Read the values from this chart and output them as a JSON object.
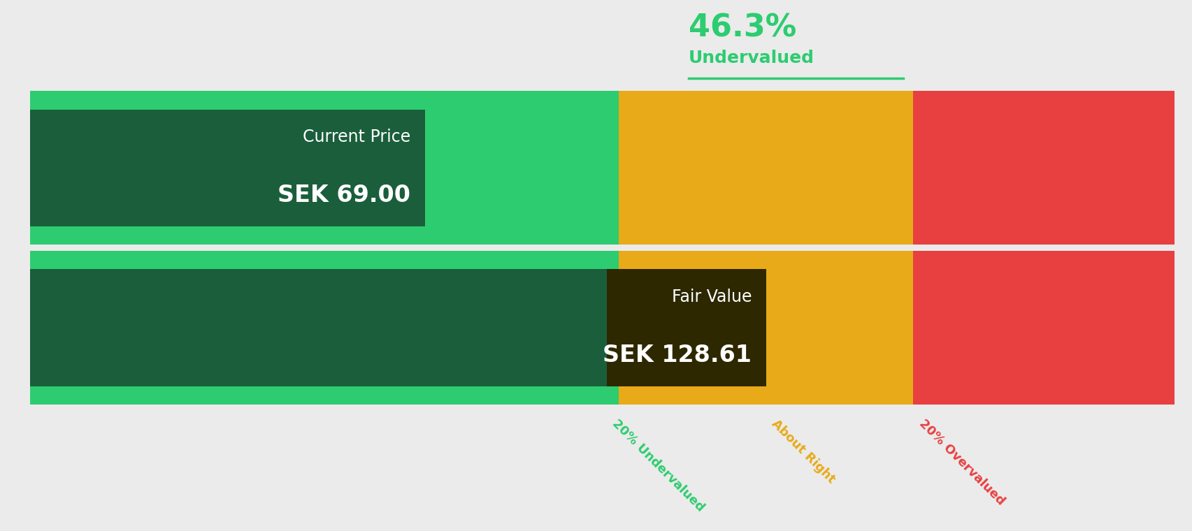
{
  "background_color": "#ebebeb",
  "pct_text": "46.3%",
  "pct_label": "Undervalued",
  "pct_color": "#2dcc70",
  "current_price_label": "Current Price",
  "current_price_value": "SEK 69.00",
  "fair_value_label": "Fair Value",
  "fair_value_value": "SEK 128.61",
  "current_price": 69.0,
  "fair_value": 128.61,
  "price_max": 200.0,
  "u20_bound": 102.888,
  "o20_bound": 154.332,
  "green_light": "#2dcc70",
  "green_dark": "#1b5e3b",
  "fair_value_dark": "#2d2800",
  "orange": "#e8aa18",
  "red": "#e84040",
  "white": "#ffffff",
  "label_20under": "20% Undervalued",
  "label_about_right": "About Right",
  "label_20over": "20% Overvalued",
  "label_20under_color": "#2dcc70",
  "label_about_right_color": "#e8aa18",
  "label_20over_color": "#e84040",
  "underline_color": "#2dcc70"
}
